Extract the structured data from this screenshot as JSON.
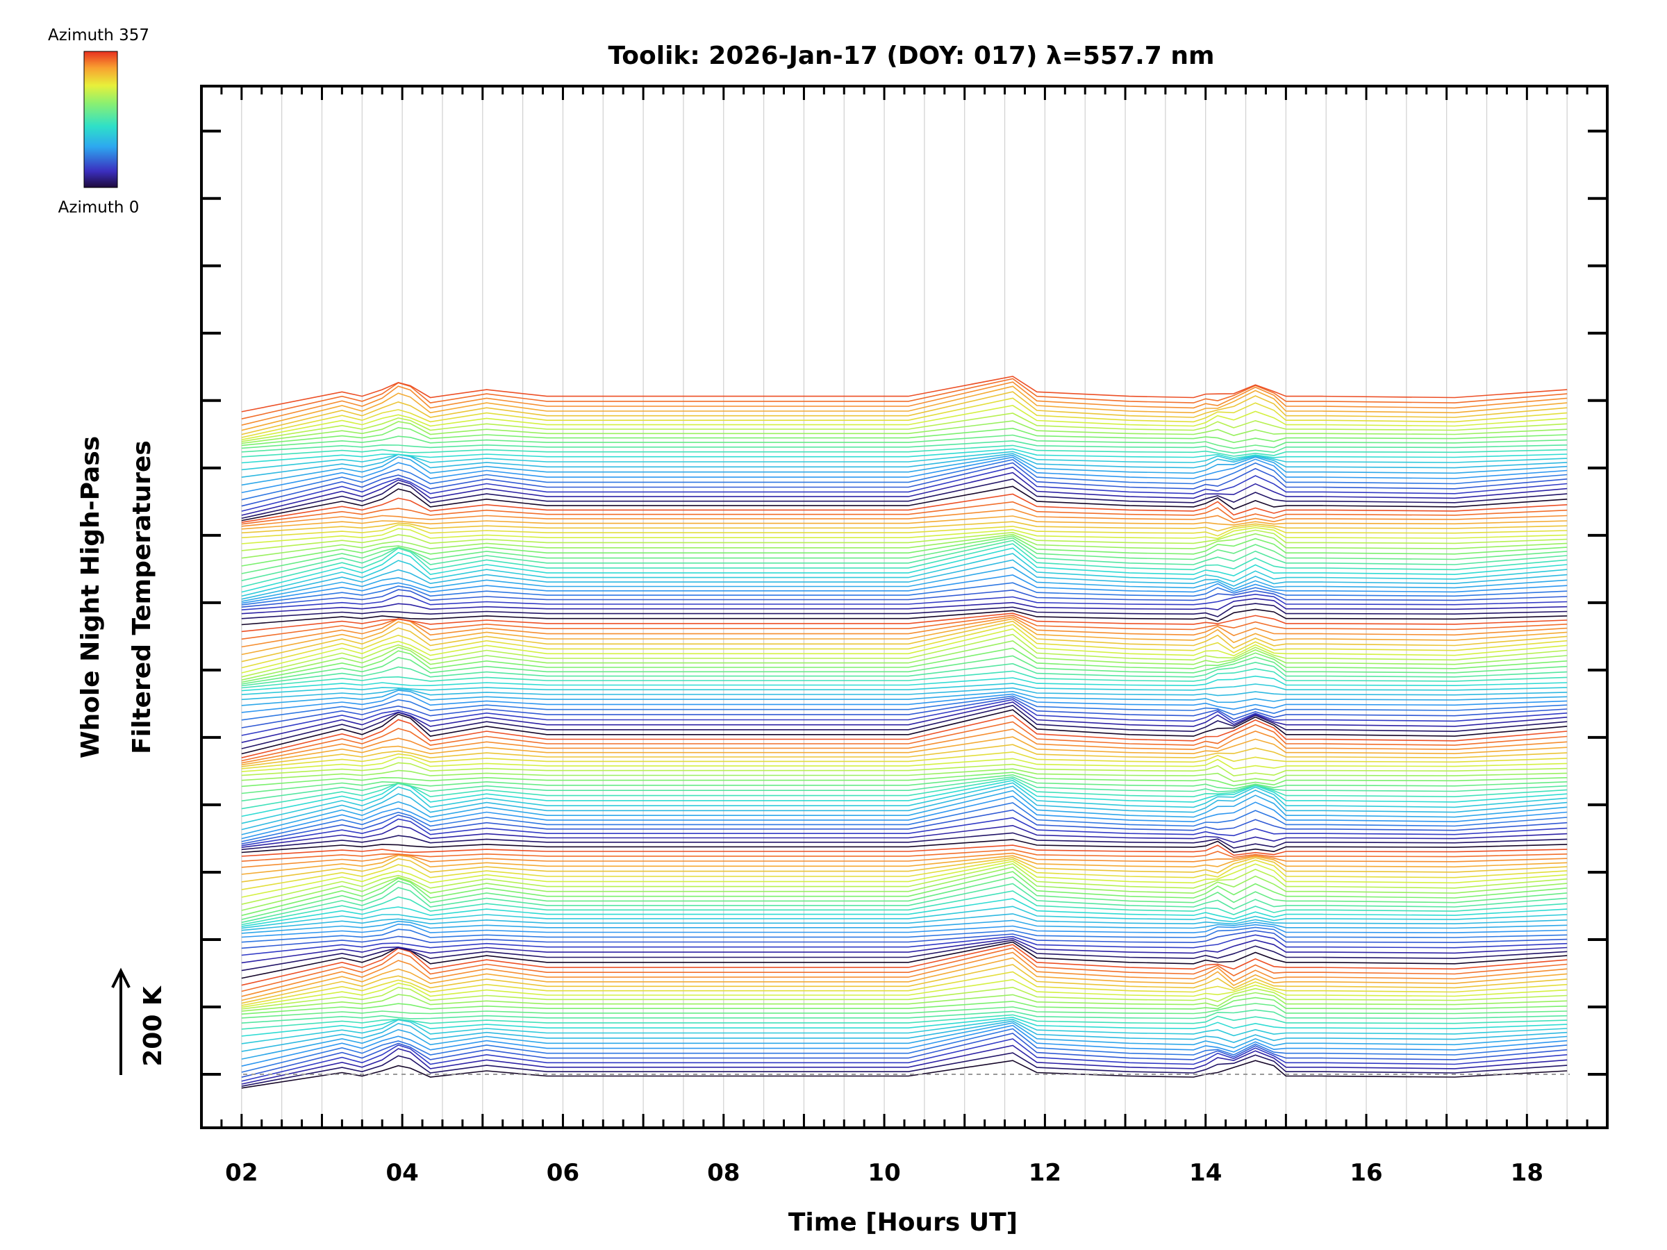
{
  "chart_data": {
    "type": "line",
    "title": "Toolik: 2026-Jan-17 (DOY: 017) λ=557.7 nm",
    "xlabel": "Time [Hours UT]",
    "ylabel_line1": "Whole Night High-Pass",
    "ylabel_line2": "Filtered Temperatures",
    "xlim": [
      1.5,
      19.0
    ],
    "x_tick_labels": [
      "02",
      "04",
      "06",
      "08",
      "10",
      "12",
      "14",
      "16",
      "18"
    ],
    "x_tick_values": [
      2,
      4,
      6,
      8,
      10,
      12,
      14,
      16,
      18
    ],
    "colorbar": {
      "top_label": "Azimuth  357",
      "bottom_label": "Azimuth  0",
      "min": 0,
      "max": 357
    },
    "scale_label": "200 K",
    "n_traces": 144,
    "trace_offset_K": 25,
    "series_azimuth_range": [
      0,
      357
    ],
    "time_samples_hours": [
      2.0,
      3.25,
      3.5,
      3.75,
      3.95,
      4.1,
      4.35,
      5.05,
      5.8,
      10.3,
      11.6,
      11.9,
      13.05,
      13.85,
      14.0,
      14.15,
      14.35,
      14.62,
      14.85,
      15.0,
      15.45,
      17.1,
      18.5
    ],
    "base_trace_K": [
      -40,
      5,
      -5,
      10,
      25,
      18,
      -8,
      10,
      -5,
      -5,
      40,
      5,
      -5,
      -8,
      0,
      5,
      0,
      20,
      5,
      -5,
      -5,
      -8,
      10
    ],
    "colors": {
      "axis": "#000000",
      "grid": "#d0d0d0",
      "baseline": "#999999"
    }
  }
}
